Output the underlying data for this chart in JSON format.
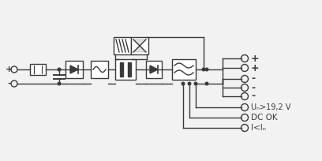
{
  "bg_color": "#f2f2f2",
  "line_color": "#3a3a3a",
  "box_color": "#ffffff",
  "fig_w": 4.08,
  "fig_h": 2.04,
  "dpi": 100,
  "labels": {
    "plus_in": "+",
    "minus_in": "-",
    "plus_out1": "+",
    "plus_out2": "+",
    "minus_out1": "-",
    "minus_out2": "-",
    "minus_out3": "-",
    "signal1": "Uₙ>19,2 V",
    "signal2": "DC OK",
    "signal3": "I<Iₙ"
  }
}
